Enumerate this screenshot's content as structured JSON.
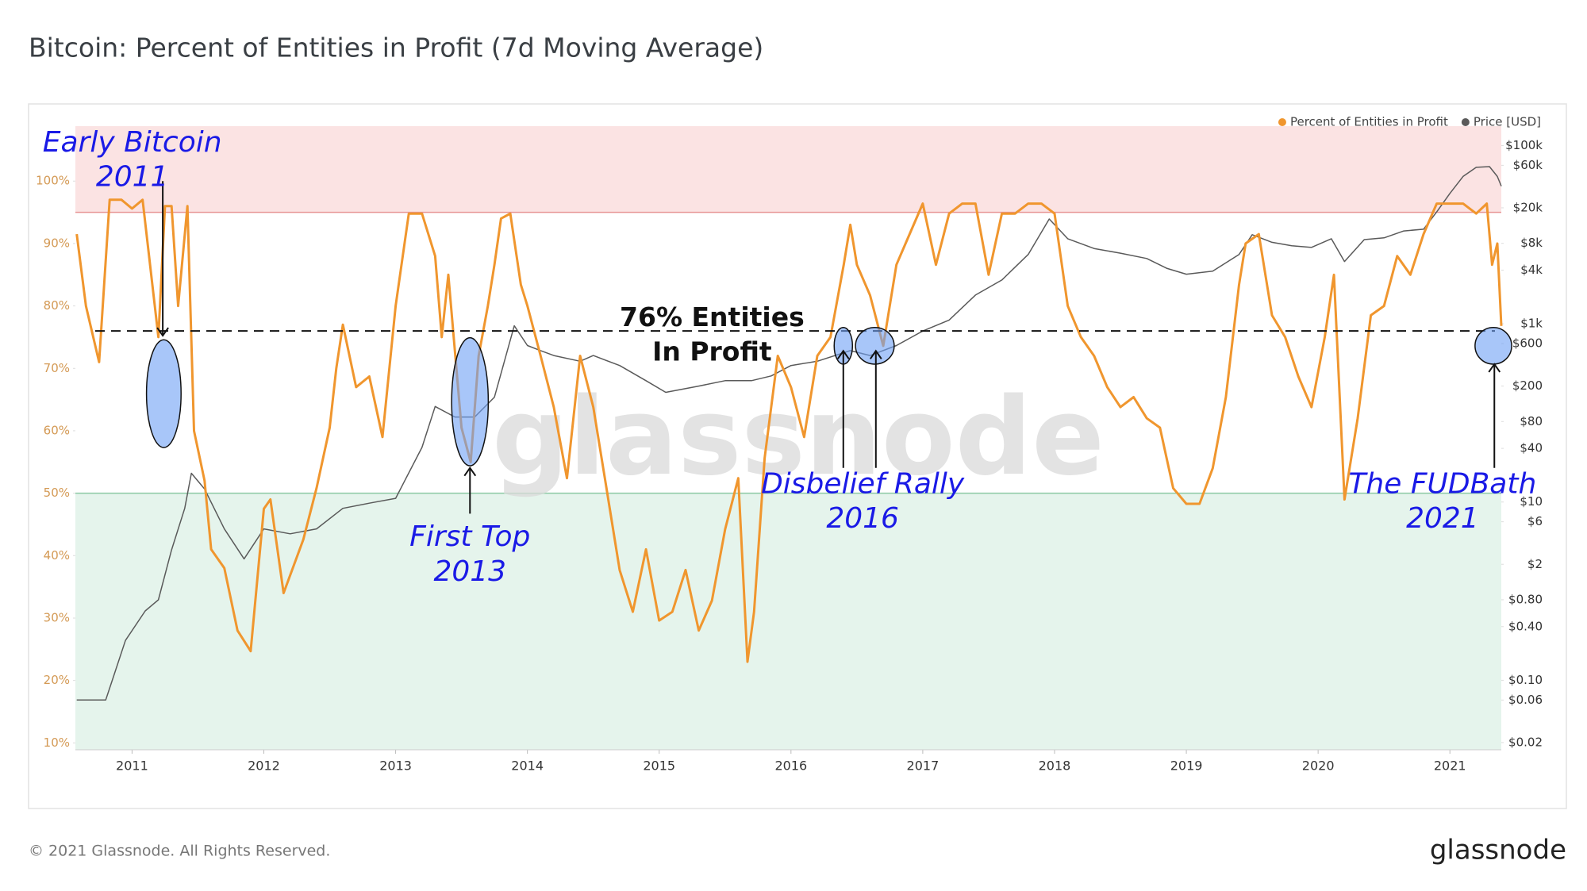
{
  "chart_data": {
    "type": "line",
    "title": "Bitcoin: Percent of Entities in Profit (7d Moving Average)",
    "xlim": [
      2010.57,
      2021.39
    ],
    "xticks": [
      2011,
      2012,
      2013,
      2014,
      2015,
      2016,
      2017,
      2018,
      2019,
      2020,
      2021
    ],
    "ylim": [
      8.9,
      108.8
    ],
    "yticks": [
      {
        "value": 10,
        "label": "10%"
      },
      {
        "value": 20,
        "label": "20%"
      },
      {
        "value": 30,
        "label": "30%"
      },
      {
        "value": 40,
        "label": "40%"
      },
      {
        "value": 50,
        "label": "50%"
      },
      {
        "value": 60,
        "label": "60%"
      },
      {
        "value": 70,
        "label": "70%"
      },
      {
        "value": 80,
        "label": "80%"
      },
      {
        "value": 90,
        "label": "90%"
      },
      {
        "value": 100,
        "label": "100%"
      }
    ],
    "y2lim": [
      0.0166,
      165000
    ],
    "y2_log": true,
    "y2ticks": [
      {
        "value": 100000,
        "label": "$100k"
      },
      {
        "value": 60000,
        "label": "$60k"
      },
      {
        "value": 20000,
        "label": "$20k"
      },
      {
        "value": 8000,
        "label": "$8k"
      },
      {
        "value": 4000,
        "label": "$4k"
      },
      {
        "value": 1000,
        "label": "$1k"
      },
      {
        "value": 600,
        "label": "$600"
      },
      {
        "value": 200,
        "label": "$200"
      },
      {
        "value": 80,
        "label": "$80"
      },
      {
        "value": 40,
        "label": "$40"
      },
      {
        "value": 10,
        "label": "$10"
      },
      {
        "value": 6,
        "label": "$6"
      },
      {
        "value": 2,
        "label": "$2"
      },
      {
        "value": 0.8,
        "label": "$0.80"
      },
      {
        "value": 0.4,
        "label": "$0.40"
      },
      {
        "value": 0.1,
        "label": "$0.10"
      },
      {
        "value": 0.06,
        "label": "$0.06"
      },
      {
        "value": 0.02,
        "label": "$0.02"
      }
    ],
    "grid": false,
    "legend": "top-right",
    "bands": [
      {
        "from": 95,
        "color": "#fbe3e3",
        "edge": "#e79595"
      },
      {
        "to": 50,
        "color": "#e5f4ec",
        "edge": "#8ccaa5"
      }
    ],
    "reference_line": 76,
    "series": [
      {
        "name": "Percent of Entities in Profit",
        "color": "#f0962e",
        "axis": "y",
        "x": [
          2010.58,
          2010.65,
          2010.75,
          2010.83,
          2010.92,
          2011.0,
          2011.08,
          2011.2,
          2011.25,
          2011.3,
          2011.35,
          2011.42,
          2011.47,
          2011.55,
          2011.6,
          2011.7,
          2011.8,
          2011.9,
          2012.0,
          2012.05,
          2012.15,
          2012.3,
          2012.4,
          2012.5,
          2012.55,
          2012.6,
          2012.7,
          2012.8,
          2012.9,
          2013.0,
          2013.1,
          2013.2,
          2013.3,
          2013.35,
          2013.4,
          2013.5,
          2013.57,
          2013.63,
          2013.7,
          2013.75,
          2013.8,
          2013.87,
          2013.95,
          2014.0,
          2014.1,
          2014.2,
          2014.3,
          2014.4,
          2014.5,
          2014.6,
          2014.7,
          2014.8,
          2014.9,
          2015.0,
          2015.1,
          2015.2,
          2015.3,
          2015.4,
          2015.5,
          2015.6,
          2015.67,
          2015.72,
          2015.8,
          2015.9,
          2016.0,
          2016.1,
          2016.2,
          2016.3,
          2016.4,
          2016.45,
          2016.5,
          2016.6,
          2016.7,
          2016.8,
          2016.9,
          2017.0,
          2017.1,
          2017.2,
          2017.3,
          2017.4,
          2017.5,
          2017.6,
          2017.7,
          2017.8,
          2017.9,
          2018.0,
          2018.1,
          2018.2,
          2018.3,
          2018.4,
          2018.5,
          2018.6,
          2018.7,
          2018.8,
          2018.9,
          2019.0,
          2019.1,
          2019.2,
          2019.3,
          2019.4,
          2019.45,
          2019.55,
          2019.65,
          2019.75,
          2019.85,
          2019.95,
          2020.05,
          2020.12,
          2020.2,
          2020.3,
          2020.4,
          2020.5,
          2020.6,
          2020.7,
          2020.8,
          2020.9,
          2021.0,
          2021.1,
          2021.2,
          2021.28,
          2021.32,
          2021.36,
          2021.39
        ],
        "values": [
          91.5,
          80,
          71,
          97,
          97,
          95.6,
          97,
          75,
          96,
          96,
          80,
          96,
          60,
          52,
          41,
          38,
          28,
          24.7,
          47.5,
          49,
          34,
          42.6,
          50.8,
          60.5,
          70,
          77,
          67,
          68.7,
          59,
          80,
          94.8,
          94.8,
          88,
          75,
          85,
          60.5,
          55,
          72,
          80,
          86.6,
          94,
          94.8,
          83.4,
          80,
          72,
          63.8,
          52.4,
          72,
          63.8,
          50.8,
          37.7,
          31,
          41,
          29.6,
          31,
          37.7,
          28,
          32.8,
          44.2,
          52.4,
          23,
          31,
          55.6,
          72,
          67,
          59,
          72,
          75,
          86.6,
          93,
          86.6,
          81.7,
          73.6,
          86.6,
          91.5,
          96.4,
          86.6,
          94.8,
          96.4,
          96.4,
          85,
          94.8,
          94.8,
          96.4,
          96.4,
          94.8,
          80,
          75,
          72,
          67,
          63.8,
          65.4,
          62,
          60.5,
          50.8,
          48.3,
          48.3,
          54,
          65.4,
          83.4,
          90,
          91.5,
          78.5,
          75,
          68.7,
          63.8,
          75,
          85,
          49,
          62,
          78.5,
          80,
          88,
          85,
          91.5,
          96.4,
          96.4,
          96.4,
          94.8,
          96.4,
          86.6,
          90,
          76.8
        ]
      },
      {
        "name": "Price [USD]",
        "color": "#5a5a5a",
        "axis": "y2",
        "x": [
          2010.58,
          2010.8,
          2010.85,
          2010.95,
          2011.1,
          2011.2,
          2011.3,
          2011.4,
          2011.45,
          2011.55,
          2011.7,
          2011.85,
          2012.0,
          2012.2,
          2012.4,
          2012.6,
          2012.8,
          2013.0,
          2013.2,
          2013.3,
          2013.45,
          2013.6,
          2013.75,
          2013.9,
          2014.0,
          2014.1,
          2014.2,
          2014.4,
          2014.5,
          2014.7,
          2014.9,
          2015.05,
          2015.3,
          2015.5,
          2015.7,
          2015.85,
          2016.0,
          2016.2,
          2016.45,
          2016.6,
          2016.8,
          2017.0,
          2017.2,
          2017.4,
          2017.6,
          2017.8,
          2017.96,
          2018.1,
          2018.3,
          2018.5,
          2018.7,
          2018.85,
          2019.0,
          2019.2,
          2019.4,
          2019.5,
          2019.65,
          2019.8,
          2019.95,
          2020.1,
          2020.2,
          2020.35,
          2020.5,
          2020.65,
          2020.8,
          2020.9,
          2021.0,
          2021.1,
          2021.2,
          2021.3,
          2021.36,
          2021.39
        ],
        "values": [
          0.06,
          0.06,
          0.1,
          0.28,
          0.6,
          0.8,
          2.9,
          8.5,
          21,
          14,
          5,
          2.3,
          5,
          4.4,
          5,
          8.5,
          9.7,
          11,
          41,
          118,
          90,
          90,
          150,
          950,
          570,
          500,
          440,
          380,
          440,
          340,
          230,
          170,
          200,
          230,
          230,
          260,
          340,
          380,
          500,
          440,
          570,
          830,
          1100,
          2100,
          3100,
          6000,
          15000,
          9000,
          7000,
          6200,
          5400,
          4200,
          3600,
          3900,
          6000,
          10000,
          8200,
          7500,
          7200,
          9000,
          5000,
          8800,
          9200,
          11000,
          11500,
          18000,
          29000,
          45000,
          57000,
          58000,
          45000,
          35000
        ]
      }
    ],
    "annotations": [
      [
        "Early Bitcoin",
        "2011"
      ],
      [
        "First Top",
        "2013"
      ],
      [
        "76% Entities",
        "In Profit"
      ],
      [
        "Disbelief Rally",
        "2016"
      ],
      [
        "The FUDBath",
        "2021"
      ]
    ],
    "watermark": "glassnode"
  },
  "footer": {
    "copyright": "© 2021 Glassnode. All Rights Reserved.",
    "logo": "glassnode"
  }
}
